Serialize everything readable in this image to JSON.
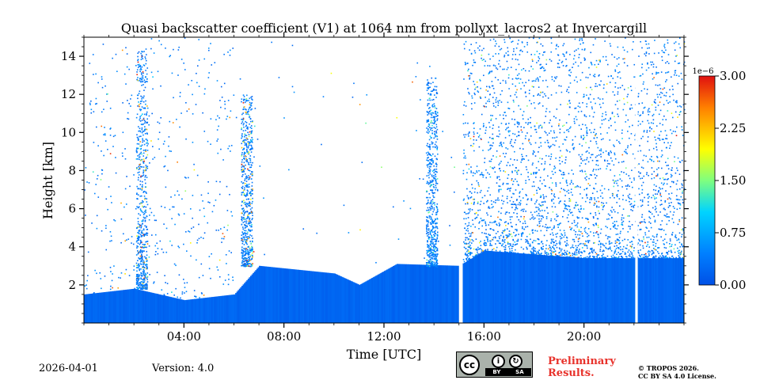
{
  "chart_data": {
    "type": "heatmap",
    "title": "Quasi backscatter coefficient (V1) at 1064 nm from pollyxt_lacros2 at Invercargill",
    "xlabel": "Time [UTC]",
    "ylabel": "Height [km]",
    "xlim": [
      0,
      24
    ],
    "ylim": [
      0,
      15
    ],
    "x_tick_values": [
      4,
      8,
      12,
      16,
      20
    ],
    "x_tick_labels": [
      "04:00",
      "08:00",
      "12:00",
      "16:00",
      "20:00"
    ],
    "y_tick_values": [
      2,
      4,
      6,
      8,
      10,
      12,
      14
    ],
    "y_tick_labels": [
      "2",
      "4",
      "6",
      "8",
      "10",
      "12",
      "14"
    ],
    "colorbar": {
      "min": 0,
      "max": 3.0,
      "scale_label": "1e−6",
      "tick_values": [
        0,
        0.75,
        1.5,
        2.25,
        3.0
      ],
      "tick_labels": [
        "0.00",
        "0.75",
        "1.50",
        "2.25",
        "3.00"
      ]
    },
    "data_gaps_hours": [
      [
        15.0,
        15.15
      ],
      [
        22.05,
        22.15
      ]
    ],
    "boundary_layer_km": [
      {
        "t": 0.0,
        "h": 1.5
      },
      {
        "t": 2.0,
        "h": 1.8
      },
      {
        "t": 4.0,
        "h": 1.2
      },
      {
        "t": 6.0,
        "h": 1.5
      },
      {
        "t": 7.0,
        "h": 3.0
      },
      {
        "t": 10.0,
        "h": 2.6
      },
      {
        "t": 11.0,
        "h": 2.0
      },
      {
        "t": 12.5,
        "h": 3.1
      },
      {
        "t": 15.0,
        "h": 3.0
      },
      {
        "t": 16.0,
        "h": 3.8
      },
      {
        "t": 20.0,
        "h": 3.4
      },
      {
        "t": 24.0,
        "h": 3.4
      }
    ],
    "noise_regions": [
      {
        "t_start": 0.0,
        "t_end": 6.0,
        "top_km": 15,
        "density": "low"
      },
      {
        "t_start": 6.0,
        "t_end": 15.0,
        "top_km": 15,
        "density": "very_low"
      },
      {
        "t_start": 15.15,
        "t_end": 24.0,
        "top_km": 15,
        "density": "high"
      }
    ],
    "clouds": [
      {
        "t": 2.3,
        "h_bottom": 1.8,
        "h_top": 14.5,
        "max_value": 3.0
      },
      {
        "t": 6.5,
        "h_bottom": 3.0,
        "h_top": 12.0,
        "max_value": 3.0
      },
      {
        "t": 13.9,
        "h_bottom": 3.0,
        "h_top": 13.0,
        "max_value": 1.5
      }
    ]
  },
  "footer": {
    "date": "2026-04-01",
    "version": "Version: 4.0",
    "preliminary_line1": "Preliminary",
    "preliminary_line2": "Results.",
    "copyright_line1": "© TROPOS 2026.",
    "copyright_line2": "CC BY SA 4.0 License.",
    "cc_text": "cc",
    "by_text": "BY",
    "sa_text": "SA"
  },
  "colors": {
    "accent_red": "#e8322b",
    "jet_low": "#00007f",
    "jet_high": "#7f0000"
  }
}
